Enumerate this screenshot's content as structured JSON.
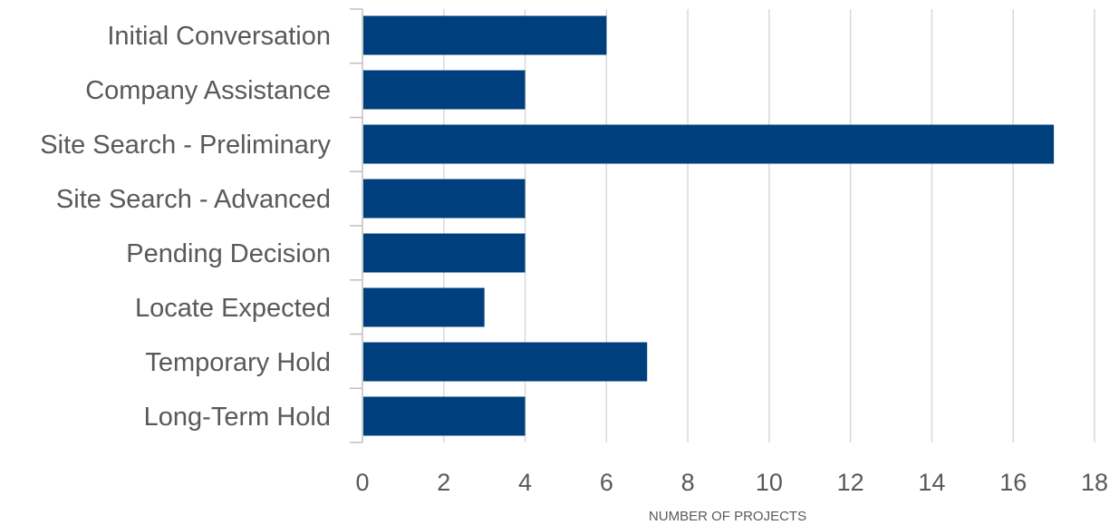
{
  "chart_data": {
    "type": "bar",
    "orientation": "horizontal",
    "categories": [
      "Initial Conversation",
      "Company Assistance",
      "Site Search - Preliminary",
      "Site Search - Advanced",
      "Pending Decision",
      "Locate Expected",
      "Temporary Hold",
      "Long-Term Hold"
    ],
    "values": [
      6,
      4,
      17,
      4,
      4,
      3,
      7,
      4
    ],
    "title": "",
    "xlabel": "NUMBER OF PROJECTS",
    "ylabel": "",
    "xlim": [
      0,
      18
    ],
    "xticks": [
      0,
      2,
      4,
      6,
      8,
      10,
      12,
      14,
      16,
      18
    ],
    "grid": "vertical",
    "legend": "none",
    "bar_color": "#003f7d",
    "gridline_color": "#d9d9d9",
    "axis_color": "#bfbfbf",
    "label_color": "#595959"
  }
}
